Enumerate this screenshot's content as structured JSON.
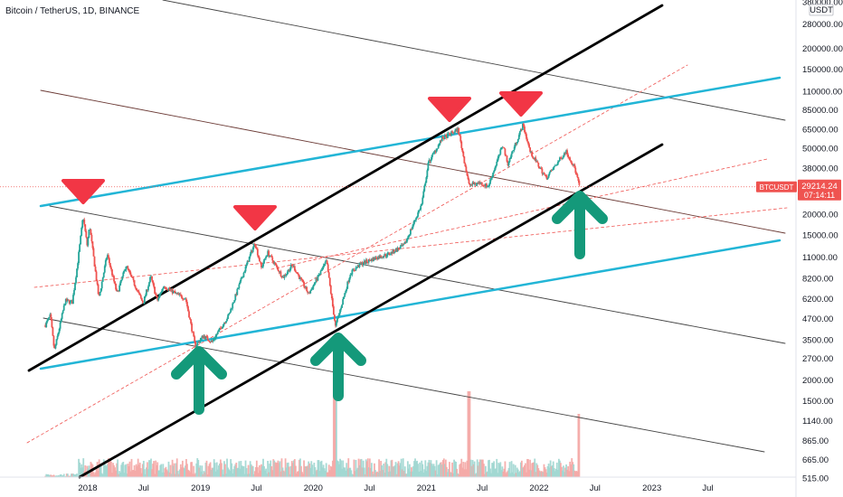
{
  "header": {
    "title": "Bitcoin / TetherUS, 1D, BINANCE"
  },
  "colors": {
    "up": "#26a69a",
    "down": "#ef5350",
    "channel": "#000000",
    "cyan": "#22b5d6",
    "brown": "#6b3a35",
    "dashed": "#ef5350",
    "arrowUp": "#14997a",
    "arrowDown": "#f23645",
    "priceLine": "#ef5350"
  },
  "chart_data": {
    "type": "candlestick",
    "symbol": "BTCUSDT",
    "exchange": "BINANCE",
    "interval": "1D",
    "y_scale": "log",
    "y_ticks": [
      "380000.00",
      "280000.00",
      "200000.00",
      "150000.00",
      "110000.00",
      "85000.00",
      "65000.00",
      "50000.00",
      "38000.00",
      "29214.24",
      "20000.00",
      "15000.00",
      "11000.00",
      "8200.00",
      "6200.00",
      "4700.00",
      "3500.00",
      "2700.00",
      "2000.00",
      "1500.00",
      "1140.00",
      "865.00",
      "665.00",
      "515.00"
    ],
    "y_unit": "USDT",
    "x_ticks": [
      "2018",
      "Jul",
      "2019",
      "Jul",
      "2020",
      "Jul",
      "2021",
      "Jul",
      "2022",
      "Jul",
      "2023",
      "Jul"
    ],
    "last_price": "29214.24",
    "countdown": "07:14:11",
    "price_label": "BTCUSDT",
    "price_path": [
      [
        "2017-08-17",
        4300
      ],
      [
        "2017-09-02",
        4900
      ],
      [
        "2017-09-15",
        3000
      ],
      [
        "2017-10-20",
        6000
      ],
      [
        "2017-11-12",
        5900
      ],
      [
        "2017-11-29",
        10000
      ],
      [
        "2017-12-17",
        19500
      ],
      [
        "2017-12-30",
        13000
      ],
      [
        "2018-01-07",
        17000
      ],
      [
        "2018-02-06",
        6200
      ],
      [
        "2018-03-05",
        11500
      ],
      [
        "2018-04-06",
        6600
      ],
      [
        "2018-05-05",
        9800
      ],
      [
        "2018-06-29",
        5800
      ],
      [
        "2018-07-24",
        8400
      ],
      [
        "2018-08-14",
        6000
      ],
      [
        "2018-09-04",
        7400
      ],
      [
        "2018-10-15",
        6600
      ],
      [
        "2018-11-14",
        6200
      ],
      [
        "2018-12-15",
        3200
      ],
      [
        "2019-01-10",
        3700
      ],
      [
        "2019-02-07",
        3400
      ],
      [
        "2019-04-02",
        4900
      ],
      [
        "2019-05-14",
        8200
      ],
      [
        "2019-06-26",
        13500
      ],
      [
        "2019-07-17",
        9500
      ],
      [
        "2019-08-06",
        11800
      ],
      [
        "2019-09-25",
        8300
      ],
      [
        "2019-10-26",
        9900
      ],
      [
        "2019-12-17",
        6600
      ],
      [
        "2020-02-13",
        10400
      ],
      [
        "2020-03-13",
        4200
      ],
      [
        "2020-04-30",
        8800
      ],
      [
        "2020-06-01",
        10000
      ],
      [
        "2020-07-27",
        11000
      ],
      [
        "2020-09-02",
        11500
      ],
      [
        "2020-10-22",
        13000
      ],
      [
        "2020-12-17",
        23000
      ],
      [
        "2021-01-08",
        41000
      ],
      [
        "2021-02-21",
        57000
      ],
      [
        "2021-04-14",
        64800
      ],
      [
        "2021-05-19",
        30000
      ],
      [
        "2021-06-22",
        31000
      ],
      [
        "2021-07-20",
        29300
      ],
      [
        "2021-09-06",
        52700
      ],
      [
        "2021-09-21",
        40000
      ],
      [
        "2021-11-10",
        69000
      ],
      [
        "2021-12-04",
        47000
      ],
      [
        "2022-01-24",
        33000
      ],
      [
        "2022-03-29",
        48000
      ],
      [
        "2022-04-26",
        38000
      ],
      [
        "2022-05-12",
        29214
      ]
    ],
    "annotations": {
      "tops": [
        "2018-01",
        "2019-06",
        "2021-04",
        "2021-11"
      ],
      "bottoms": [
        "2019-01",
        "2020-03",
        "2022-05"
      ]
    }
  }
}
